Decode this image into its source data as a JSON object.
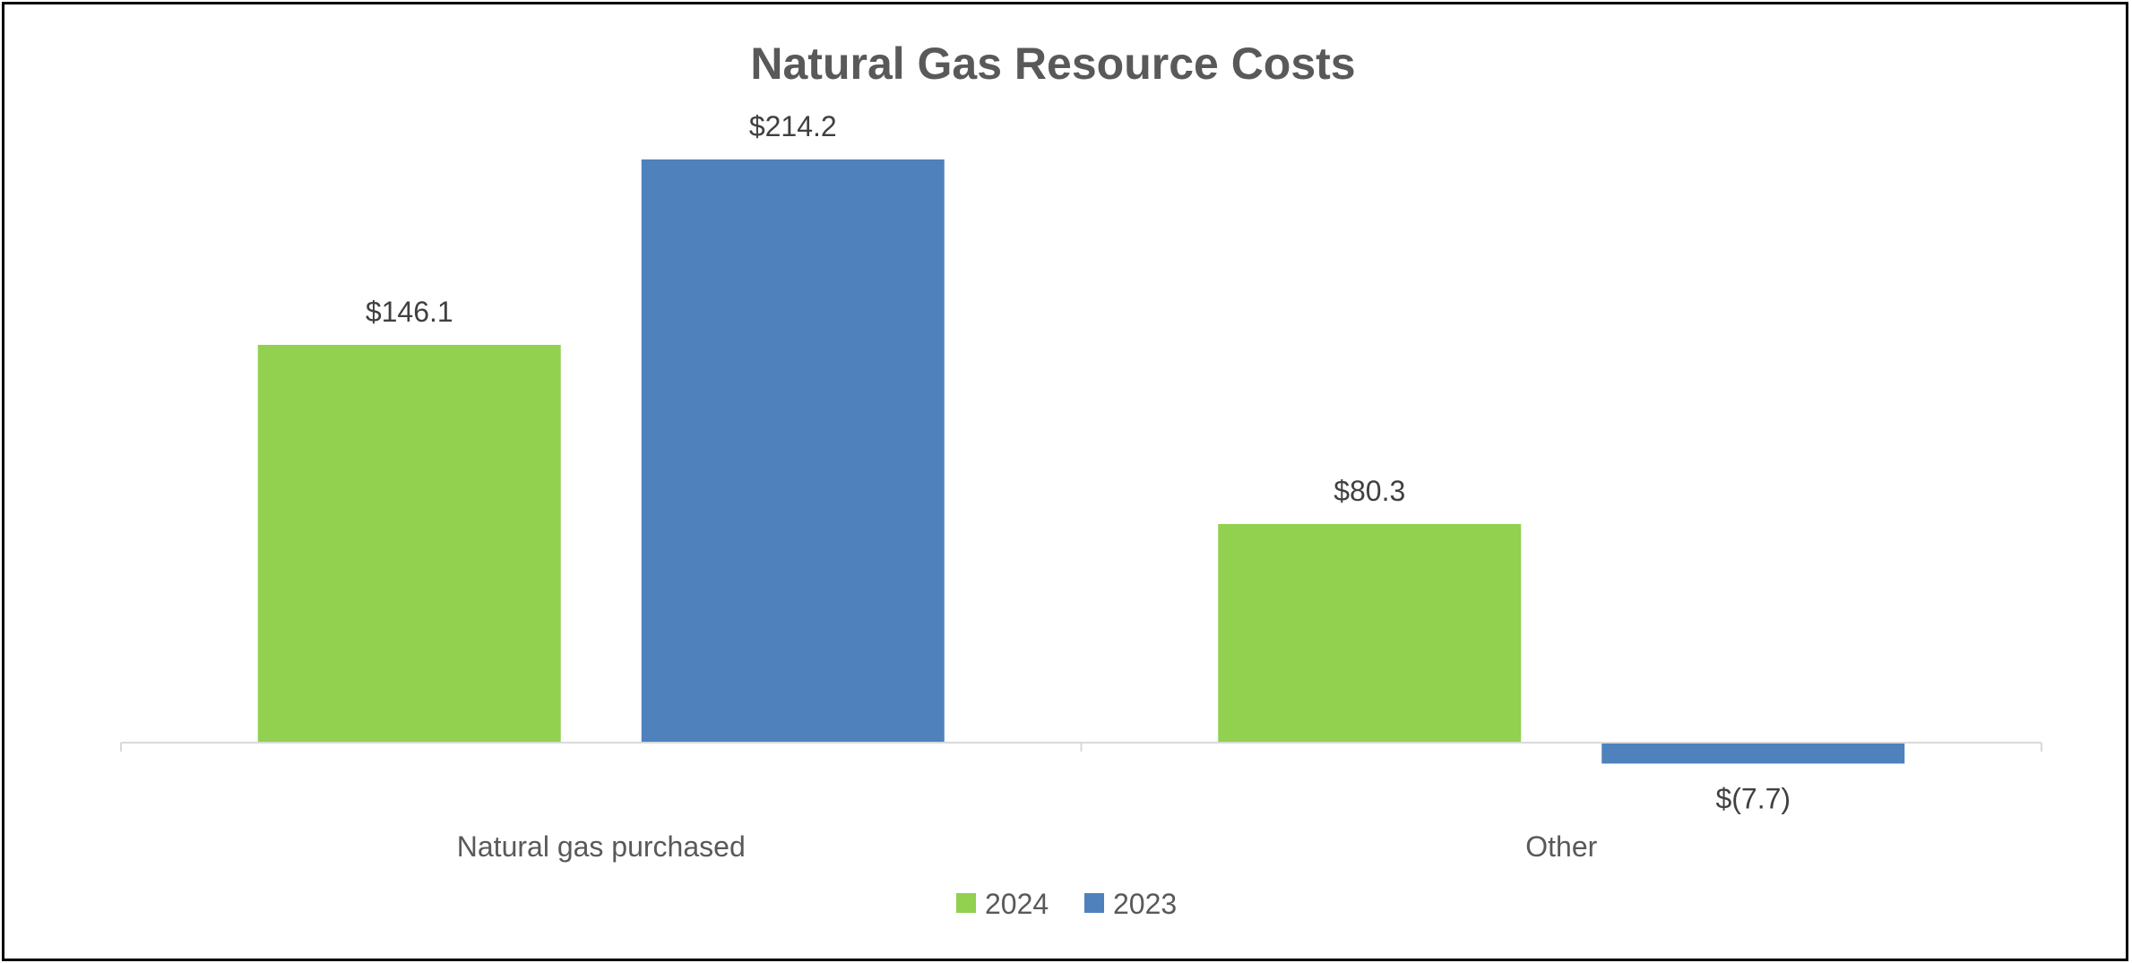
{
  "chart_data": {
    "type": "bar",
    "title": "Natural Gas Resource Costs",
    "categories": [
      "Natural gas purchased",
      "Other"
    ],
    "series": [
      {
        "name": "2024",
        "color": "#92D050",
        "values": [
          146.1,
          80.3
        ],
        "labels": [
          "$146.1",
          "$80.3"
        ]
      },
      {
        "name": "2023",
        "color": "#4F81BD",
        "values": [
          214.2,
          -7.7
        ],
        "labels": [
          "$214.2",
          "$(7.7)"
        ]
      }
    ],
    "xlabel": "",
    "ylabel": "",
    "ylim": [
      -7.7,
      214.2
    ],
    "grid": false,
    "legend_position": "bottom",
    "baseline_color": "#D9D9D9"
  }
}
